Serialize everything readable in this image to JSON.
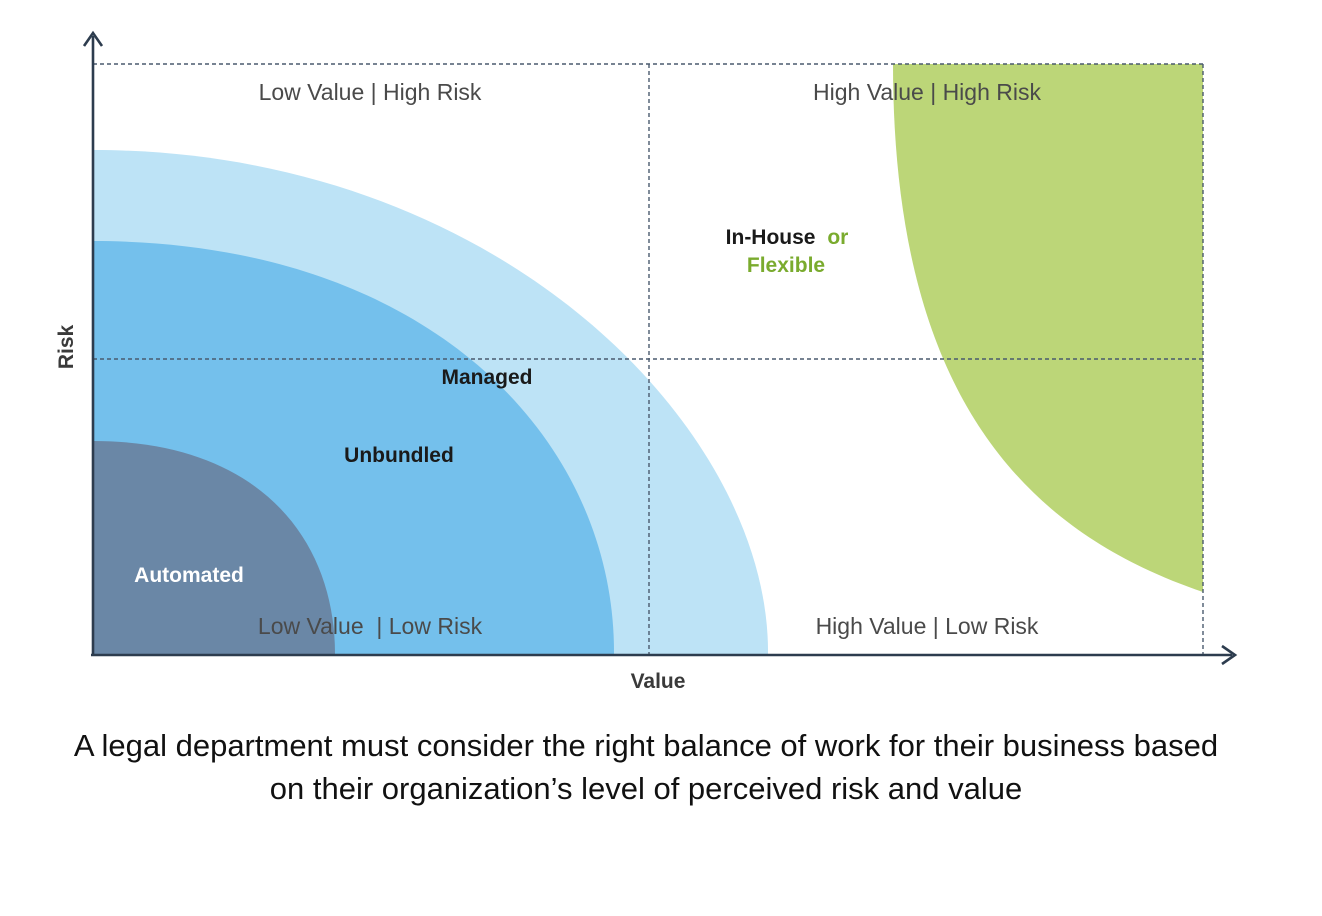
{
  "quadrants": {
    "top_left": "Low Value | High Risk",
    "top_right": "High Value | High Risk",
    "bottom_left": "Low Value  | Low Risk",
    "bottom_right": "High Value | Low Risk"
  },
  "zones": {
    "managed": "Managed",
    "unbundled": "Unbundled",
    "automated": "Automated",
    "in_house": "In-House",
    "or": "or",
    "flexible": "Flexible"
  },
  "axes": {
    "x_label": "Value",
    "y_label": "Risk"
  },
  "caption": "A legal department must consider the right balance of work for their business based on their organization’s level of perceived risk and value",
  "colors": {
    "managed": "#bde3f6",
    "unbundled": "#74c0ec",
    "automated": "#6a87a6",
    "flexible": "#bcd678",
    "flexible_text": "#7aab2e",
    "axis": "#2d3c4e",
    "grid": "#4a5a6e"
  }
}
